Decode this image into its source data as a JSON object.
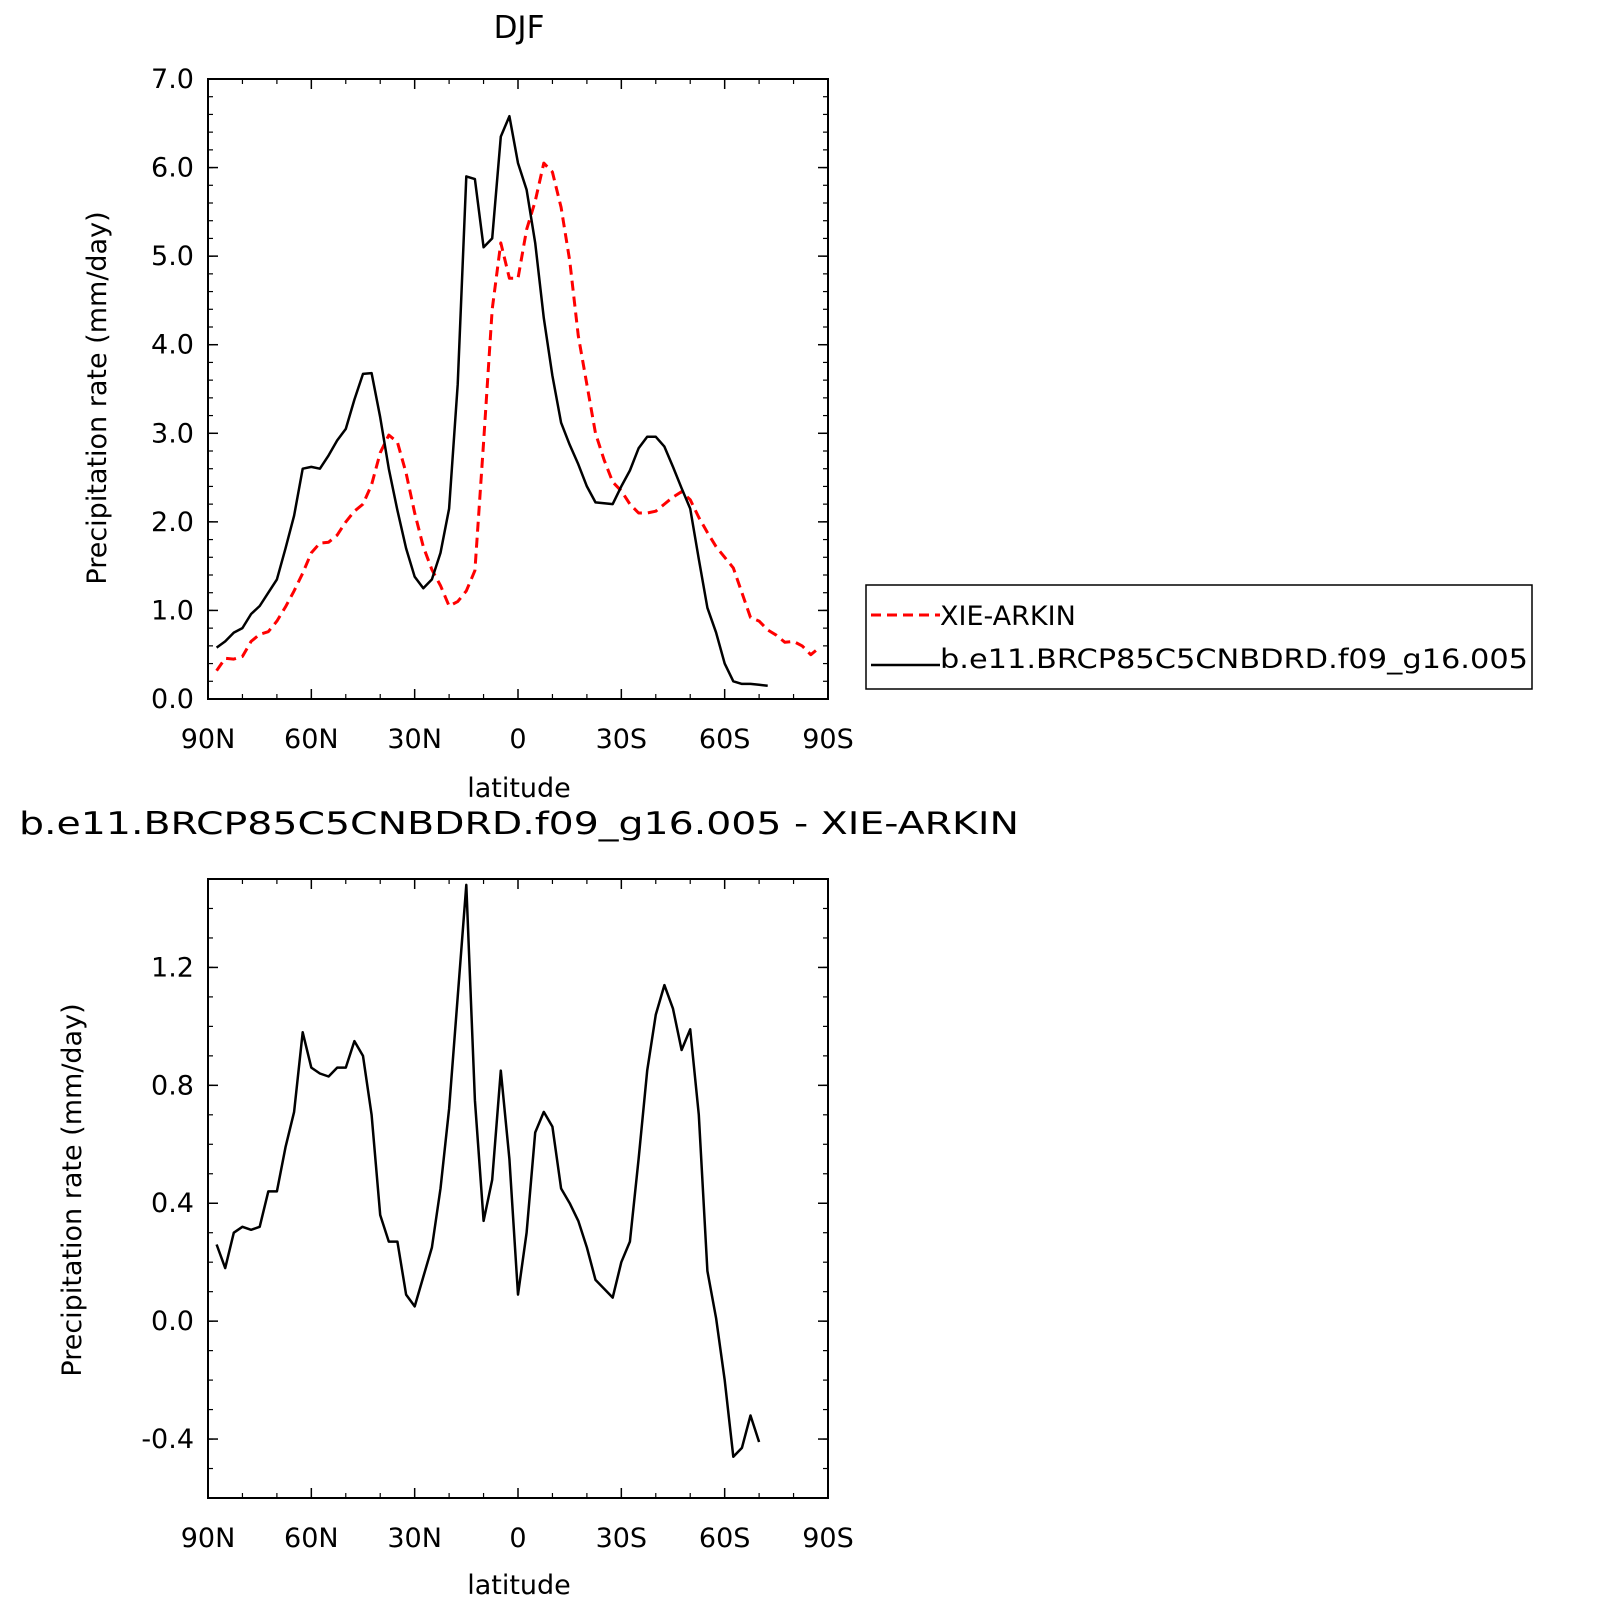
{
  "chart_data": [
    {
      "type": "line",
      "title": "DJF",
      "xlabel": "latitude",
      "ylabel": "Precipitation rate (mm/day)",
      "xlim": [
        90,
        -90
      ],
      "ylim": [
        0,
        7
      ],
      "xticks": [
        90,
        60,
        30,
        0,
        -30,
        -60,
        -90
      ],
      "xtick_labels": [
        "90N",
        "60N",
        "30N",
        "0",
        "30S",
        "60S",
        "90S"
      ],
      "yticks": [
        0,
        1,
        2,
        3,
        4,
        5,
        6,
        7
      ],
      "ytick_labels": [
        "0.0",
        "1.0",
        "2.0",
        "3.0",
        "4.0",
        "5.0",
        "6.0",
        "7.0"
      ],
      "grid": false,
      "legend_position": "right",
      "series": [
        {
          "name": "XIE-ARKIN",
          "color": "#ff0000",
          "dash": "dashed",
          "points": [
            [
              87.5,
              0.32
            ],
            [
              85,
              0.46
            ],
            [
              82.5,
              0.45
            ],
            [
              80,
              0.48
            ],
            [
              77.5,
              0.65
            ],
            [
              75,
              0.73
            ],
            [
              72.5,
              0.76
            ],
            [
              70,
              0.88
            ],
            [
              67.5,
              1.04
            ],
            [
              65,
              1.22
            ],
            [
              62.5,
              1.42
            ],
            [
              60,
              1.65
            ],
            [
              57.5,
              1.76
            ],
            [
              55,
              1.77
            ],
            [
              52.5,
              1.85
            ],
            [
              50,
              2.0
            ],
            [
              47.5,
              2.12
            ],
            [
              45,
              2.2
            ],
            [
              42.5,
              2.42
            ],
            [
              40,
              2.78
            ],
            [
              37.5,
              2.98
            ],
            [
              35,
              2.9
            ],
            [
              32.5,
              2.55
            ],
            [
              30,
              2.1
            ],
            [
              27.5,
              1.72
            ],
            [
              25,
              1.46
            ],
            [
              22.5,
              1.28
            ],
            [
              20,
              1.05
            ],
            [
              17.5,
              1.1
            ],
            [
              15,
              1.22
            ],
            [
              12.5,
              1.45
            ],
            [
              10,
              2.9
            ],
            [
              7.5,
              4.4
            ],
            [
              5,
              5.15
            ],
            [
              2.5,
              4.75
            ],
            [
              0,
              4.75
            ],
            [
              -2.5,
              5.3
            ],
            [
              -5,
              5.62
            ],
            [
              -7.5,
              6.05
            ],
            [
              -10,
              5.95
            ],
            [
              -12.5,
              5.55
            ],
            [
              -15,
              4.95
            ],
            [
              -17.5,
              4.1
            ],
            [
              -20,
              3.55
            ],
            [
              -22.5,
              3.0
            ],
            [
              -25,
              2.7
            ],
            [
              -27.5,
              2.45
            ],
            [
              -30,
              2.35
            ],
            [
              -32.5,
              2.2
            ],
            [
              -35,
              2.1
            ],
            [
              -37.5,
              2.1
            ],
            [
              -40,
              2.12
            ],
            [
              -42.5,
              2.2
            ],
            [
              -45,
              2.28
            ],
            [
              -47.5,
              2.34
            ],
            [
              -50,
              2.25
            ],
            [
              -52.5,
              2.05
            ],
            [
              -55,
              1.88
            ],
            [
              -57.5,
              1.72
            ],
            [
              -60,
              1.6
            ],
            [
              -62.5,
              1.48
            ],
            [
              -65,
              1.2
            ],
            [
              -67.5,
              0.92
            ],
            [
              -70,
              0.88
            ],
            [
              -72.5,
              0.78
            ],
            [
              -75,
              0.72
            ],
            [
              -77.5,
              0.64
            ],
            [
              -80,
              0.65
            ],
            [
              -82.5,
              0.6
            ],
            [
              -85,
              0.5
            ],
            [
              -87.5,
              0.58
            ]
          ]
        },
        {
          "name": "b.e11.BRCP85C5CNBDRD.f09_g16.005",
          "color": "#000000",
          "dash": "solid",
          "points": [
            [
              87.5,
              0.58
            ],
            [
              85,
              0.65
            ],
            [
              82.5,
              0.75
            ],
            [
              80,
              0.8
            ],
            [
              77.5,
              0.96
            ],
            [
              75,
              1.05
            ],
            [
              72.5,
              1.2
            ],
            [
              70,
              1.35
            ],
            [
              67.5,
              1.7
            ],
            [
              65,
              2.07
            ],
            [
              62.5,
              2.6
            ],
            [
              60,
              2.62
            ],
            [
              57.5,
              2.6
            ],
            [
              55,
              2.75
            ],
            [
              52.5,
              2.92
            ],
            [
              50,
              3.05
            ],
            [
              47.5,
              3.38
            ],
            [
              45,
              3.67
            ],
            [
              42.5,
              3.68
            ],
            [
              40,
              3.18
            ],
            [
              37.5,
              2.6
            ],
            [
              35,
              2.13
            ],
            [
              32.5,
              1.7
            ],
            [
              30,
              1.38
            ],
            [
              27.5,
              1.25
            ],
            [
              25,
              1.35
            ],
            [
              22.5,
              1.65
            ],
            [
              20,
              2.15
            ],
            [
              17.5,
              3.55
            ],
            [
              15,
              5.9
            ],
            [
              12.5,
              5.87
            ],
            [
              10,
              5.1
            ],
            [
              7.5,
              5.2
            ],
            [
              5,
              6.35
            ],
            [
              2.5,
              6.58
            ],
            [
              0,
              6.05
            ],
            [
              -2.5,
              5.75
            ],
            [
              -5,
              5.15
            ],
            [
              -7.5,
              4.3
            ],
            [
              -10,
              3.65
            ],
            [
              -12.5,
              3.12
            ],
            [
              -15,
              2.87
            ],
            [
              -17.5,
              2.65
            ],
            [
              -20,
              2.4
            ],
            [
              -22.5,
              2.22
            ],
            [
              -25,
              2.21
            ],
            [
              -27.5,
              2.2
            ],
            [
              -30,
              2.4
            ],
            [
              -32.5,
              2.58
            ],
            [
              -35,
              2.83
            ],
            [
              -37.5,
              2.96
            ],
            [
              -40,
              2.96
            ],
            [
              -42.5,
              2.85
            ],
            [
              -45,
              2.62
            ],
            [
              -47.5,
              2.38
            ],
            [
              -50,
              2.15
            ],
            [
              -52.5,
              1.58
            ],
            [
              -55,
              1.03
            ],
            [
              -57.5,
              0.75
            ],
            [
              -60,
              0.4
            ],
            [
              -62.5,
              0.2
            ],
            [
              -65,
              0.17
            ],
            [
              -67.5,
              0.17
            ],
            [
              -70,
              0.16
            ],
            [
              -72.5,
              0.15
            ]
          ]
        }
      ]
    },
    {
      "type": "line",
      "title": "b.e11.BRCP85C5CNBDRD.f09_g16.005 - XIE-ARKIN",
      "xlabel": "latitude",
      "ylabel": "Precipitation rate (mm/day)",
      "xlim": [
        90,
        -90
      ],
      "ylim": [
        -0.6,
        1.5
      ],
      "xticks": [
        90,
        60,
        30,
        0,
        -30,
        -60,
        -90
      ],
      "xtick_labels": [
        "90N",
        "60N",
        "30N",
        "0",
        "30S",
        "60S",
        "90S"
      ],
      "yticks": [
        -0.4,
        0.0,
        0.4,
        0.8,
        1.2
      ],
      "ytick_labels": [
        "-0.4",
        "0.0",
        "0.4",
        "0.8",
        "1.2"
      ],
      "grid": false,
      "series": [
        {
          "color": "#000000",
          "dash": "solid",
          "points": [
            [
              87.5,
              0.26
            ],
            [
              85,
              0.18
            ],
            [
              82.5,
              0.3
            ],
            [
              80,
              0.32
            ],
            [
              77.5,
              0.31
            ],
            [
              75,
              0.32
            ],
            [
              72.5,
              0.44
            ],
            [
              70,
              0.44
            ],
            [
              67.5,
              0.59
            ],
            [
              65,
              0.71
            ],
            [
              62.5,
              0.98
            ],
            [
              60,
              0.86
            ],
            [
              57.5,
              0.84
            ],
            [
              55,
              0.83
            ],
            [
              52.5,
              0.86
            ],
            [
              50,
              0.86
            ],
            [
              47.5,
              0.95
            ],
            [
              45,
              0.9
            ],
            [
              42.5,
              0.7
            ],
            [
              40,
              0.36
            ],
            [
              37.5,
              0.27
            ],
            [
              35,
              0.27
            ],
            [
              32.5,
              0.09
            ],
            [
              30,
              0.05
            ],
            [
              27.5,
              0.15
            ],
            [
              25,
              0.25
            ],
            [
              22.5,
              0.45
            ],
            [
              20,
              0.72
            ],
            [
              17.5,
              1.1
            ],
            [
              15,
              1.48
            ],
            [
              12.5,
              0.75
            ],
            [
              10,
              0.34
            ],
            [
              7.5,
              0.48
            ],
            [
              5,
              0.85
            ],
            [
              2.5,
              0.55
            ],
            [
              0,
              0.09
            ],
            [
              -2.5,
              0.3
            ],
            [
              -5,
              0.64
            ],
            [
              -7.5,
              0.71
            ],
            [
              -10,
              0.66
            ],
            [
              -12.5,
              0.45
            ],
            [
              -15,
              0.4
            ],
            [
              -17.5,
              0.34
            ],
            [
              -20,
              0.25
            ],
            [
              -22.5,
              0.14
            ],
            [
              -25,
              0.11
            ],
            [
              -27.5,
              0.08
            ],
            [
              -30,
              0.2
            ],
            [
              -32.5,
              0.27
            ],
            [
              -35,
              0.55
            ],
            [
              -37.5,
              0.85
            ],
            [
              -40,
              1.04
            ],
            [
              -42.5,
              1.14
            ],
            [
              -45,
              1.06
            ],
            [
              -47.5,
              0.92
            ],
            [
              -50,
              0.99
            ],
            [
              -52.5,
              0.7
            ],
            [
              -55,
              0.17
            ],
            [
              -57.5,
              0.01
            ],
            [
              -60,
              -0.2
            ],
            [
              -62.5,
              -0.46
            ],
            [
              -65,
              -0.43
            ],
            [
              -67.5,
              -0.32
            ],
            [
              -70,
              -0.41
            ]
          ]
        }
      ]
    }
  ],
  "legend": {
    "items": [
      {
        "label": "XIE-ARKIN"
      },
      {
        "label": "b.e11.BRCP85C5CNBDRD.f09_g16.005"
      }
    ]
  }
}
